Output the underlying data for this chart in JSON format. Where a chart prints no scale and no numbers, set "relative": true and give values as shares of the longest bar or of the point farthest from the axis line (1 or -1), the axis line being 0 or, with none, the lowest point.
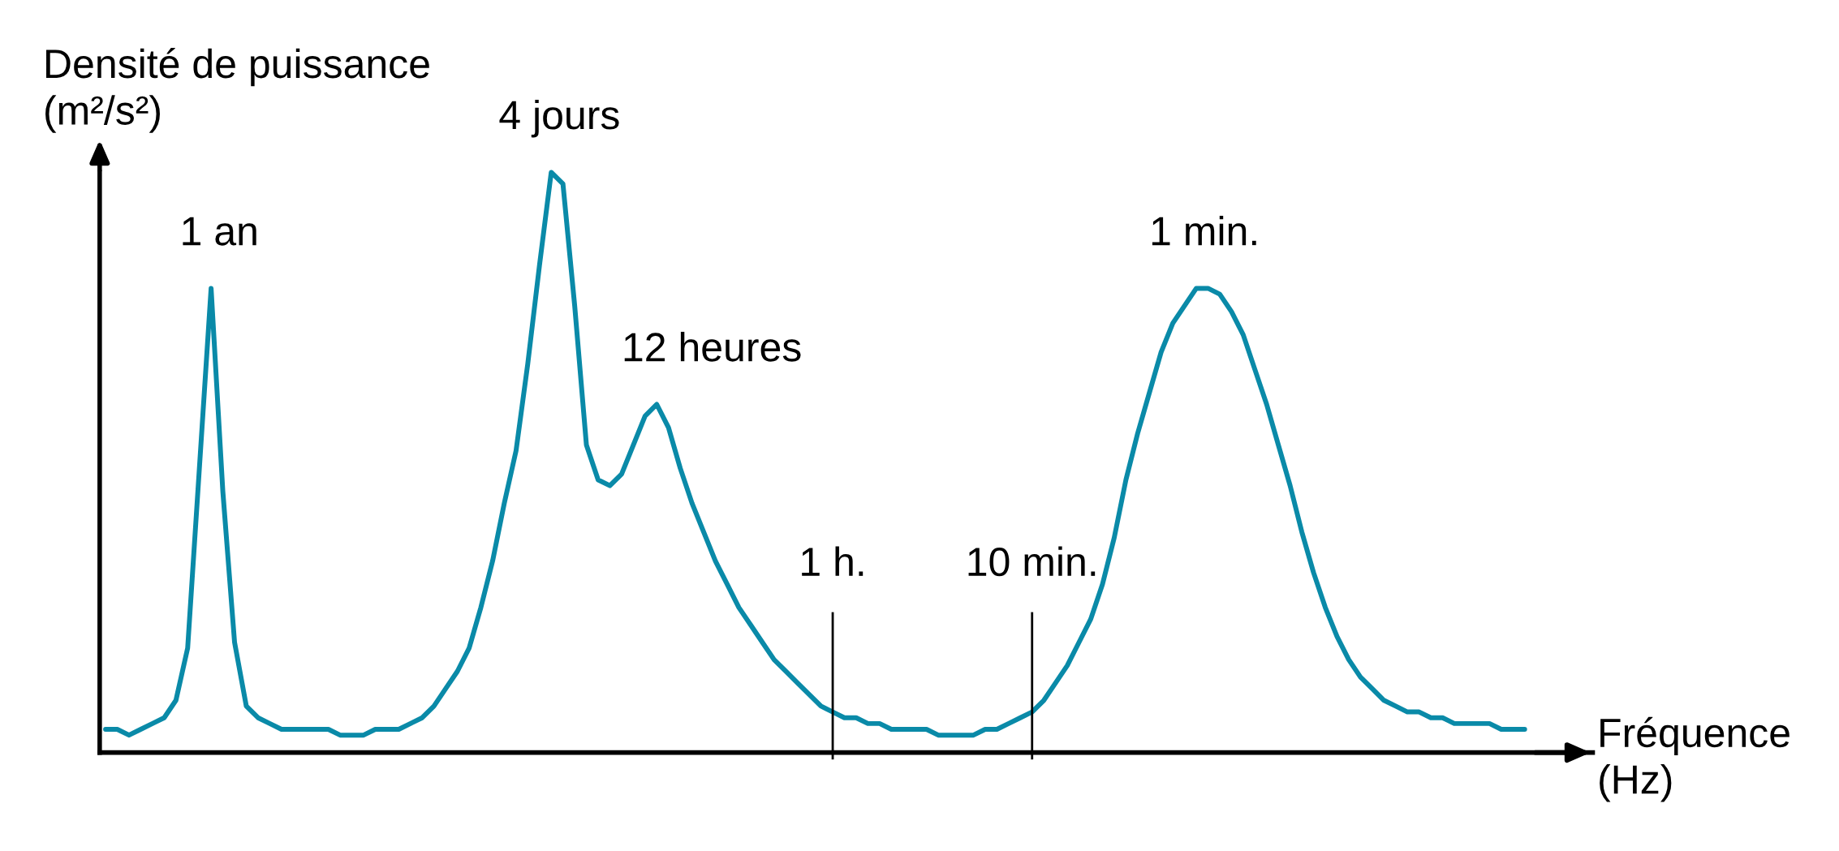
{
  "chart_data": {
    "type": "line",
    "relative": true,
    "tick_labels": "x",
    "xlabel": "Fréquence (Hz)",
    "ylabel": "Densité de puissance (m²/s²)",
    "categories": [
      null,
      null,
      null,
      null,
      null,
      null,
      null,
      null,
      null,
      null,
      null,
      null,
      null,
      null,
      null,
      null,
      null,
      null,
      null,
      null,
      null,
      null,
      null,
      null,
      null,
      null,
      null,
      null,
      null,
      null,
      null,
      null,
      null,
      null,
      null,
      null,
      null,
      null,
      null,
      null,
      null,
      null,
      null,
      null,
      null,
      null,
      null,
      null,
      null,
      null,
      null,
      null,
      null,
      null,
      null,
      null,
      null,
      null,
      null,
      null,
      null,
      null,
      "1 h.",
      null,
      null,
      null,
      null,
      null,
      null,
      null,
      null,
      null,
      null,
      null,
      null,
      null,
      null,
      null,
      null,
      "10 min.",
      null,
      null,
      null,
      null,
      null,
      null,
      null,
      null,
      null,
      null,
      null,
      null,
      null,
      null,
      null,
      null,
      null,
      null,
      null,
      null,
      null,
      null,
      null,
      null,
      null,
      null,
      null,
      null,
      null,
      null,
      null,
      null,
      null,
      null,
      null,
      null,
      null,
      null,
      null,
      null,
      null,
      null
    ],
    "series": [
      {
        "color": "#0a8aa8",
        "values": [
          0.04,
          0.04,
          0.03,
          0.04,
          0.05,
          0.06,
          0.09,
          0.18,
          0.49,
          0.8,
          0.45,
          0.19,
          0.08,
          0.06,
          0.05,
          0.04,
          0.04,
          0.04,
          0.04,
          0.04,
          0.03,
          0.03,
          0.03,
          0.04,
          0.04,
          0.04,
          0.05,
          0.06,
          0.08,
          0.11,
          0.14,
          0.18,
          0.25,
          0.33,
          0.43,
          0.52,
          0.67,
          0.84,
          1,
          0.98,
          0.77,
          0.53,
          0.47,
          0.46,
          0.48,
          0.53,
          0.58,
          0.6,
          0.56,
          0.49,
          0.43,
          0.38,
          0.33,
          0.29,
          0.25,
          0.22,
          0.19,
          0.16,
          0.14,
          0.12,
          0.1,
          0.08,
          0.07,
          0.06,
          0.06,
          0.05,
          0.05,
          0.04,
          0.04,
          0.04,
          0.04,
          0.03,
          0.03,
          0.03,
          0.03,
          0.04,
          0.04,
          0.05,
          0.06,
          0.07,
          0.09,
          0.12,
          0.15,
          0.19,
          0.23,
          0.29,
          0.37,
          0.47,
          0.55,
          0.62,
          0.69,
          0.74,
          0.77,
          0.8,
          0.8,
          0.79,
          0.76,
          0.72,
          0.66,
          0.6,
          0.53,
          0.46,
          0.38,
          0.31,
          0.25,
          0.2,
          0.16,
          0.13,
          0.11,
          0.09,
          0.08,
          0.07,
          0.07,
          0.06,
          0.06,
          0.05,
          0.05,
          0.05,
          0.05,
          0.04,
          0.04,
          0.04
        ]
      }
    ],
    "annotations": [
      "1 an",
      "4 jours",
      "12 heures",
      "1 min."
    ],
    "ref_lines": [
      {
        "axis": "x",
        "value": "1 h.",
        "color": "#000000"
      },
      {
        "axis": "x",
        "value": "10 min.",
        "color": "#000000"
      }
    ]
  }
}
